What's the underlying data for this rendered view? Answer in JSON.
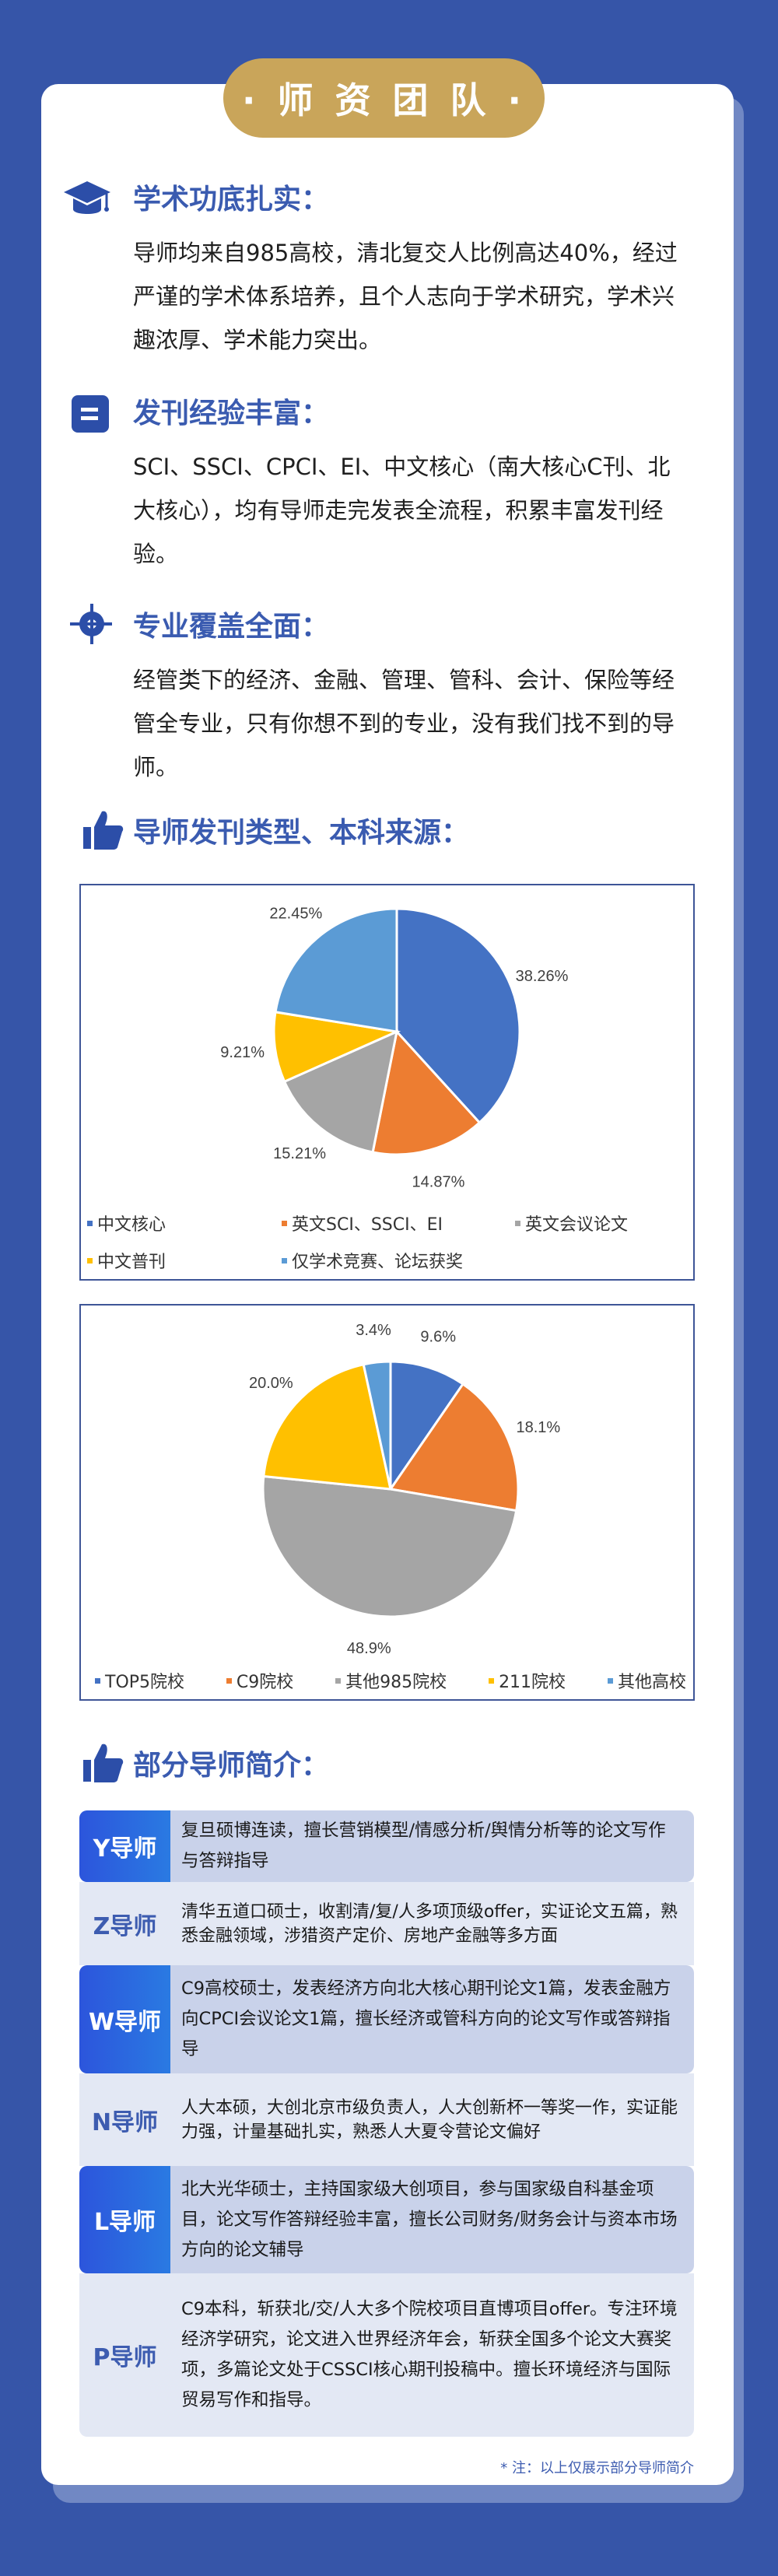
{
  "badge": "· 师 资 团 队 ·",
  "sections": [
    {
      "icon": "graduation-cap-icon",
      "title": "学术功底扎实：",
      "body": "导师均来自985高校，清北复交人比例高达40%，经过严谨的学术体系培养，且个人志向于学术研究，学术兴趣浓厚、学术能力突出。"
    },
    {
      "icon": "document-icon",
      "title": "发刊经验丰富：",
      "body": "SCI、SSCI、CPCI、EI、中文核心（南大核心C刊、北大核心），均有导师走完发表全流程，积累丰富发刊经验。"
    },
    {
      "icon": "target-icon",
      "title": "专业覆盖全面：",
      "body": "经管类下的经济、金融、管理、管科、会计、保险等经管全专业，只有你想不到的专业，没有我们找不到的导师。"
    }
  ],
  "charts_heading": "导师发刊类型、本科来源：",
  "chart_data": [
    {
      "type": "pie",
      "unit": "%",
      "categories": [
        "中文核心",
        "英文SCI、SSCI、EI",
        "英文会议论文",
        "中文普刊",
        "仅学术竞赛、论坛获奖"
      ],
      "values": [
        38.26,
        14.87,
        15.21,
        9.21,
        22.45
      ],
      "labels": [
        "38.26%",
        "14.87%",
        "15.21%",
        "9.21%",
        "22.45%"
      ],
      "colors": [
        "#4472c4",
        "#ed7d31",
        "#a5a5a5",
        "#ffc000",
        "#5b9bd5"
      ],
      "legend": "bottom"
    },
    {
      "type": "pie",
      "unit": "%",
      "categories": [
        "TOP5院校",
        "C9院校",
        "其他985院校",
        "211院校",
        "其他高校"
      ],
      "values": [
        9.6,
        18.1,
        48.9,
        20.0,
        3.4
      ],
      "labels": [
        "9.6%",
        "18.1%",
        "48.9%",
        "20.0%",
        "3.4%"
      ],
      "colors": [
        "#4472c4",
        "#ed7d31",
        "#a5a5a5",
        "#ffc000",
        "#5b9bd5"
      ],
      "legend": "bottom"
    }
  ],
  "tutors_heading": "部分导师简介：",
  "tutors": [
    {
      "name": "Y导师",
      "desc": "复旦硕博连读，擅长营销模型/情感分析/舆情分析等的论文写作与答辩指导"
    },
    {
      "name": "Z导师",
      "desc": "清华五道口硕士，收割清/复/人多项顶级offer，实证论文五篇，熟悉金融领域，涉猎资产定价、房地产金融等多方面"
    },
    {
      "name": "W导师",
      "desc": "C9高校硕士，发表经济方向北大核心期刊论文1篇，发表金融方向CPCI会议论文1篇，擅长经济或管科方向的论文写作或答辩指导"
    },
    {
      "name": "N导师",
      "desc": "人大本硕，大创北京市级负责人，人大创新杯一等奖一作，实证能力强，计量基础扎实，熟悉人大夏令营论文偏好"
    },
    {
      "name": "L导师",
      "desc": "北大光华硕士，主持国家级大创项目，参与国家级自科基金项目，论文写作答辩经验丰富，擅长公司财务/财务会计与资本市场方向的论文辅导"
    },
    {
      "name": "P导师",
      "desc": "C9本科，斩获北/交/人大多个院校项目直博项目offer。专注环境经济学研究，论文进入世界经济年会，斩获全国多个论文大赛奖项，多篇论文处于CSSCI核心期刊投稿中。擅长环境经济与国际贸易写作和指导。"
    }
  ],
  "note": "* 注：以上仅展示部分导师简介",
  "colors": {
    "background": "#3655a8",
    "accent": "#3a5bb0",
    "badge": "#c9a55a"
  }
}
